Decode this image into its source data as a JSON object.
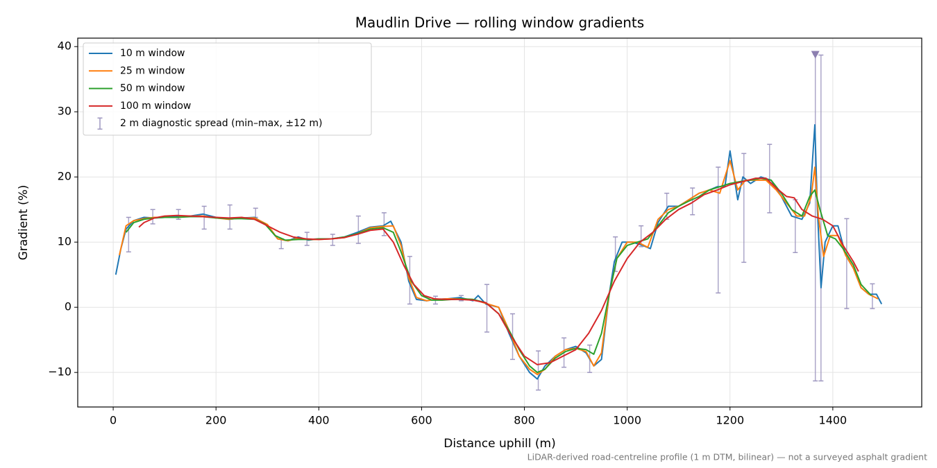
{
  "chart_data": {
    "type": "line",
    "title": "Maudlin Drive — rolling window gradients",
    "x_label": "Distance uphill (m)",
    "y_label": "Gradient (%)",
    "footnote": "LiDAR-derived road-centreline profile (1 m DTM, bilinear) — not a surveyed asphalt gradient",
    "xlim": [
      -69,
      1573
    ],
    "ylim": [
      -15.3,
      41.3
    ],
    "xticks": [
      0,
      200,
      400,
      600,
      800,
      1000,
      1200,
      1400
    ],
    "yticks": [
      {
        "value": -10,
        "label": "−10"
      },
      0,
      10,
      20,
      30,
      40
    ],
    "grid": true,
    "legend": "upper left",
    "series": [
      {
        "name": "10 m window",
        "color": "#1f77b4",
        "x": [
          5,
          15,
          25,
          40,
          60,
          80,
          100,
          125,
          150,
          175,
          200,
          225,
          250,
          275,
          300,
          320,
          340,
          360,
          380,
          400,
          425,
          450,
          475,
          500,
          525,
          540,
          560,
          575,
          590,
          610,
          625,
          650,
          675,
          700,
          710,
          725,
          750,
          770,
          790,
          810,
          825,
          840,
          860,
          880,
          900,
          920,
          935,
          950,
          965,
          975,
          990,
          1010,
          1030,
          1045,
          1060,
          1080,
          1100,
          1120,
          1140,
          1160,
          1175,
          1190,
          1200,
          1215,
          1225,
          1240,
          1260,
          1280,
          1300,
          1320,
          1340,
          1355,
          1365,
          1370,
          1377,
          1385,
          1400,
          1410,
          1425,
          1440,
          1455,
          1470,
          1485,
          1495
        ],
        "values": [
          5,
          9,
          12,
          13.3,
          13.8,
          13.7,
          13.8,
          14,
          14,
          14.3,
          13.8,
          13.5,
          13.7,
          13.8,
          12.5,
          10.5,
          10.2,
          10.8,
          10.3,
          10.5,
          10.5,
          10.8,
          11.5,
          12.3,
          12.5,
          13.2,
          10,
          4,
          1.2,
          1,
          1.2,
          1.3,
          1.5,
          1,
          1.8,
          0.5,
          0,
          -4,
          -7.5,
          -10,
          -11,
          -9,
          -7.5,
          -6.5,
          -6,
          -7,
          -9,
          -8,
          2,
          7,
          10,
          10,
          9.5,
          9,
          13,
          15.5,
          15.5,
          16.5,
          17.5,
          18,
          18.5,
          18.5,
          24,
          16.5,
          20,
          19,
          20,
          19.5,
          17,
          14,
          13.5,
          16,
          28,
          15,
          3,
          10,
          12.5,
          12.5,
          8,
          6,
          3,
          2,
          2,
          0.5
        ]
      },
      {
        "name": "25 m window",
        "color": "#ff7f0e",
        "x": [
          12,
          25,
          40,
          60,
          80,
          100,
          125,
          150,
          175,
          200,
          225,
          250,
          275,
          300,
          320,
          340,
          360,
          380,
          400,
          425,
          450,
          475,
          500,
          525,
          545,
          560,
          575,
          590,
          610,
          625,
          650,
          675,
          700,
          725,
          750,
          770,
          790,
          810,
          825,
          840,
          860,
          880,
          900,
          920,
          935,
          950,
          965,
          980,
          1000,
          1020,
          1040,
          1060,
          1080,
          1100,
          1120,
          1140,
          1160,
          1180,
          1200,
          1215,
          1230,
          1250,
          1270,
          1290,
          1310,
          1330,
          1345,
          1358,
          1365,
          1372,
          1382,
          1395,
          1410,
          1425,
          1440,
          1455,
          1470,
          1488
        ],
        "values": [
          8,
          12.5,
          13.3,
          13.6,
          13.8,
          13.8,
          13.8,
          14,
          14,
          13.7,
          13.5,
          13.7,
          13.7,
          12.7,
          10.5,
          10.2,
          10.6,
          10.4,
          10.4,
          10.5,
          10.7,
          11.3,
          12.2,
          12.4,
          12.5,
          9.5,
          4.5,
          1.5,
          1,
          1.2,
          1.3,
          1.3,
          1.2,
          0.6,
          0,
          -3.5,
          -7.5,
          -9.5,
          -10.3,
          -9.5,
          -7.5,
          -6.5,
          -6.3,
          -6.8,
          -9,
          -7,
          2,
          7.5,
          10,
          10,
          9.2,
          13.5,
          15,
          15.5,
          16.5,
          17.5,
          18,
          17.5,
          22.5,
          18,
          19.5,
          19.5,
          19.5,
          18,
          16,
          14,
          14,
          17,
          21.5,
          14,
          7.8,
          11,
          11,
          8,
          6,
          3,
          2,
          1.3
        ]
      },
      {
        "name": "50 m window",
        "color": "#2ca02c",
        "x": [
          25,
          40,
          60,
          80,
          100,
          125,
          150,
          175,
          200,
          225,
          250,
          275,
          295,
          315,
          335,
          360,
          380,
          400,
          425,
          450,
          475,
          500,
          525,
          545,
          560,
          580,
          600,
          620,
          640,
          660,
          680,
          700,
          725,
          750,
          770,
          790,
          810,
          825,
          840,
          860,
          880,
          900,
          920,
          935,
          950,
          965,
          980,
          1000,
          1020,
          1040,
          1060,
          1080,
          1100,
          1120,
          1140,
          1160,
          1180,
          1200,
          1220,
          1240,
          1260,
          1280,
          1300,
          1320,
          1340,
          1355,
          1365,
          1375,
          1390,
          1405,
          1420,
          1440,
          1455,
          1475
        ],
        "values": [
          11.5,
          13,
          13.5,
          13.7,
          13.8,
          13.8,
          13.9,
          13.9,
          13.7,
          13.6,
          13.6,
          13.5,
          12.8,
          11,
          10.3,
          10.4,
          10.4,
          10.5,
          10.5,
          10.8,
          11.3,
          12,
          12.2,
          11.5,
          8.5,
          4,
          1.8,
          1.1,
          1.1,
          1.2,
          1.3,
          1.2,
          0.7,
          -1,
          -3.5,
          -6.5,
          -9,
          -10,
          -9.5,
          -7.8,
          -6.8,
          -6.3,
          -6.5,
          -7.2,
          -4,
          2,
          7.5,
          9.5,
          10,
          10.5,
          12.5,
          14.5,
          15.5,
          16.3,
          17,
          18,
          18.5,
          19,
          19.3,
          19.5,
          19.8,
          19.5,
          17.5,
          15,
          14,
          17,
          18,
          15,
          11,
          10.5,
          9,
          6.5,
          3.5,
          1.8
        ]
      },
      {
        "name": "100 m window",
        "color": "#d62728",
        "x": [
          50,
          60,
          80,
          100,
          125,
          150,
          175,
          200,
          225,
          250,
          275,
          300,
          325,
          350,
          375,
          400,
          425,
          450,
          475,
          500,
          525,
          545,
          565,
          585,
          605,
          625,
          650,
          675,
          700,
          725,
          750,
          775,
          800,
          825,
          850,
          875,
          900,
          925,
          950,
          975,
          1000,
          1025,
          1050,
          1075,
          1100,
          1125,
          1150,
          1175,
          1200,
          1225,
          1250,
          1270,
          1290,
          1310,
          1325,
          1340,
          1360,
          1380,
          1400,
          1420,
          1440,
          1450
        ],
        "values": [
          12.3,
          13,
          13.7,
          14,
          14.1,
          14,
          13.9,
          13.8,
          13.7,
          13.8,
          13.5,
          12.5,
          11.5,
          10.8,
          10.5,
          10.4,
          10.5,
          10.7,
          11.2,
          11.8,
          12,
          10,
          6.5,
          3.5,
          1.8,
          1.3,
          1.2,
          1.2,
          1.1,
          0.7,
          -1,
          -4.5,
          -7.5,
          -8.8,
          -8.5,
          -7.5,
          -6.5,
          -4,
          -0.5,
          4,
          7.5,
          10,
          11.5,
          13.5,
          15,
          16,
          17.3,
          18,
          18.8,
          19.3,
          19.8,
          19.8,
          18.3,
          17,
          16.8,
          15,
          14,
          13.5,
          12.5,
          9.5,
          7,
          5.5
        ]
      }
    ],
    "errorbars": {
      "name": "2 m diagnostic spread (min–max, ±12 m)",
      "color": "#9e97c0",
      "x": [
        30,
        77,
        127,
        177,
        227,
        277,
        327,
        377,
        427,
        477,
        527,
        577,
        627,
        677,
        727,
        777,
        827,
        877,
        927,
        977,
        1027,
        1077,
        1127,
        1177,
        1227,
        1277,
        1327,
        1366,
        1377,
        1427,
        1477
      ],
      "low": [
        8.5,
        12.8,
        13.5,
        12,
        12,
        13.8,
        9,
        9.5,
        9.5,
        9.8,
        11,
        0.5,
        0.5,
        1,
        -3.8,
        -8,
        -12.7,
        -9.2,
        -10,
        5.5,
        9.3,
        13.5,
        14.2,
        2.2,
        6.9,
        14.5,
        8.4,
        -11.3,
        -11.3,
        -0.2,
        -0.2
      ],
      "high": [
        13.8,
        15,
        15,
        15.5,
        15.7,
        15.2,
        10.5,
        11.5,
        11.2,
        14,
        14.5,
        7.8,
        1.7,
        1.8,
        3.5,
        -1,
        -6.7,
        -4.7,
        -5.8,
        10.8,
        12.5,
        17.5,
        18.3,
        21.5,
        23.6,
        25,
        16.5,
        38.8,
        38.7,
        13.6,
        3.6
      ]
    },
    "overflow_marker": {
      "x": 1366,
      "y": 38.8,
      "color": "#8c7fb0"
    }
  }
}
